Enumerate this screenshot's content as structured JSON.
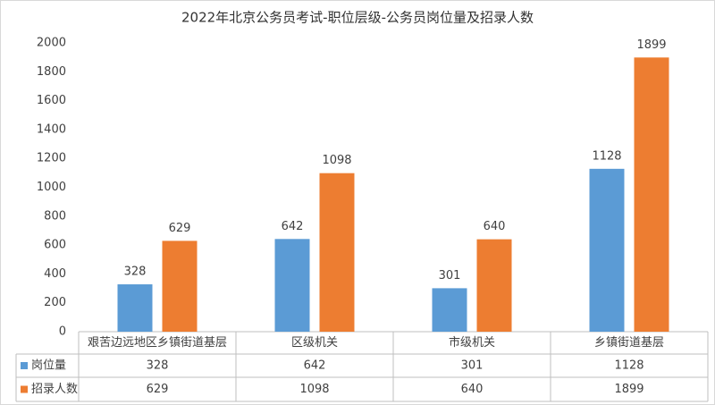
{
  "chart_data": {
    "type": "bar",
    "title": "2022年北京公务员考试-职位层级-公务员岗位量及招录人数",
    "categories": [
      "艰苦边远地区乡镇街道基层",
      "区级机关",
      "市级机关",
      "乡镇街道基层"
    ],
    "series": [
      {
        "name": "岗位量",
        "color": "#5b9bd5",
        "values": [
          328,
          642,
          301,
          1128
        ]
      },
      {
        "name": "招录人数",
        "color": "#ed7d31",
        "values": [
          629,
          1098,
          640,
          1899
        ]
      }
    ],
    "ylim": [
      0,
      2000
    ],
    "yticks": [
      0,
      200,
      400,
      600,
      800,
      1000,
      1200,
      1400,
      1600,
      1800,
      2000
    ],
    "grid": false
  }
}
